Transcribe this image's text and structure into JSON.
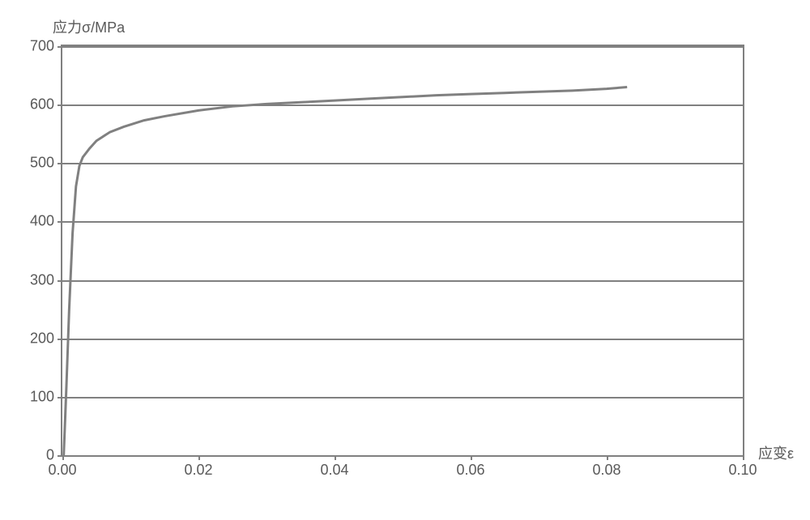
{
  "stress_strain_chart": {
    "type": "line",
    "y_axis_label": "应力σ/MPa",
    "x_axis_label": "应变ε",
    "xlim": [
      0.0,
      0.1
    ],
    "ylim": [
      0,
      700
    ],
    "x_ticks": [
      0.0,
      0.02,
      0.04,
      0.06,
      0.08,
      0.1
    ],
    "x_tick_labels": [
      "0.00",
      "0.02",
      "0.04",
      "0.06",
      "0.08",
      "0.10"
    ],
    "y_ticks": [
      0,
      100,
      200,
      300,
      400,
      500,
      600,
      700
    ],
    "y_tick_labels": [
      "0",
      "100",
      "200",
      "300",
      "400",
      "500",
      "600",
      "700"
    ],
    "series": {
      "x_values": [
        0.0002,
        0.0006,
        0.001,
        0.0015,
        0.002,
        0.0025,
        0.003,
        0.004,
        0.005,
        0.007,
        0.009,
        0.012,
        0.015,
        0.02,
        0.025,
        0.03,
        0.035,
        0.04,
        0.045,
        0.05,
        0.055,
        0.06,
        0.065,
        0.07,
        0.075,
        0.08,
        0.083
      ],
      "y_values": [
        0,
        120,
        250,
        380,
        460,
        495,
        510,
        525,
        538,
        553,
        562,
        573,
        580,
        590,
        597,
        601,
        604,
        607,
        610,
        613,
        616,
        618,
        620,
        622,
        624,
        627,
        630
      ],
      "color": "#808080",
      "line_width": 3
    },
    "background_color": "#ffffff",
    "grid_color": "#808080",
    "border_color": "#808080",
    "label_fontsize": 18,
    "tick_fontsize": 18,
    "label_color": "#595959"
  }
}
